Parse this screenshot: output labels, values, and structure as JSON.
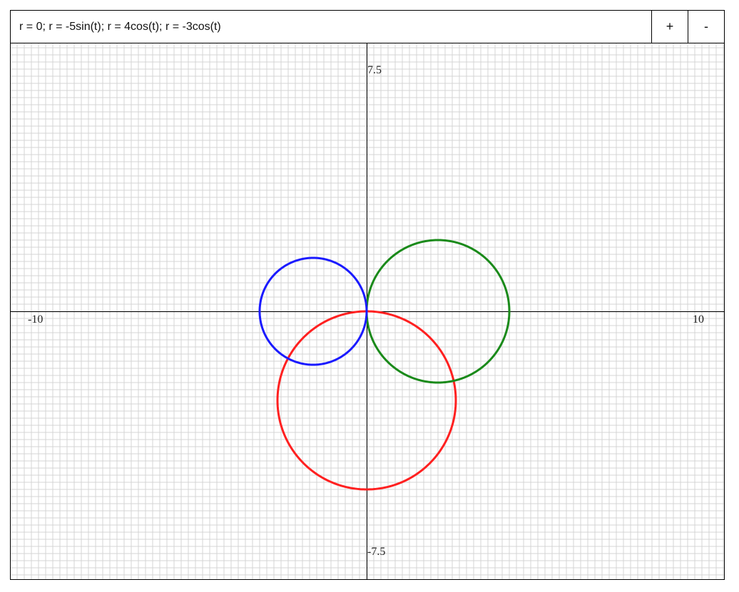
{
  "equation_bar": {
    "value": "r = 0; r = -5sin(t); r = 4cos(t); r = -3cos(t)",
    "zoom_in_label": "+",
    "zoom_out_label": "-"
  },
  "chart_data": {
    "type": "line",
    "coordinate_system": "polar",
    "xlim": [
      -10,
      10
    ],
    "ylim": [
      -7.5,
      7.5
    ],
    "grid": true,
    "axis_labels": {
      "x_min": "-10",
      "x_max": "10",
      "y_max": "7.5",
      "y_min": "-7.5"
    },
    "series": [
      {
        "expression": "r = 0",
        "color": "#000000"
      },
      {
        "expression": "r = -5sin(t)",
        "color": "#ff2020",
        "circle_center": [
          0,
          -2.5
        ],
        "radius": 2.5
      },
      {
        "expression": "r = 4cos(t)",
        "color": "#1a8a1a",
        "circle_center": [
          2,
          0
        ],
        "radius": 2
      },
      {
        "expression": "r = -3cos(t)",
        "color": "#1a1aff",
        "circle_center": [
          -1.5,
          0
        ],
        "radius": 1.5
      }
    ]
  }
}
